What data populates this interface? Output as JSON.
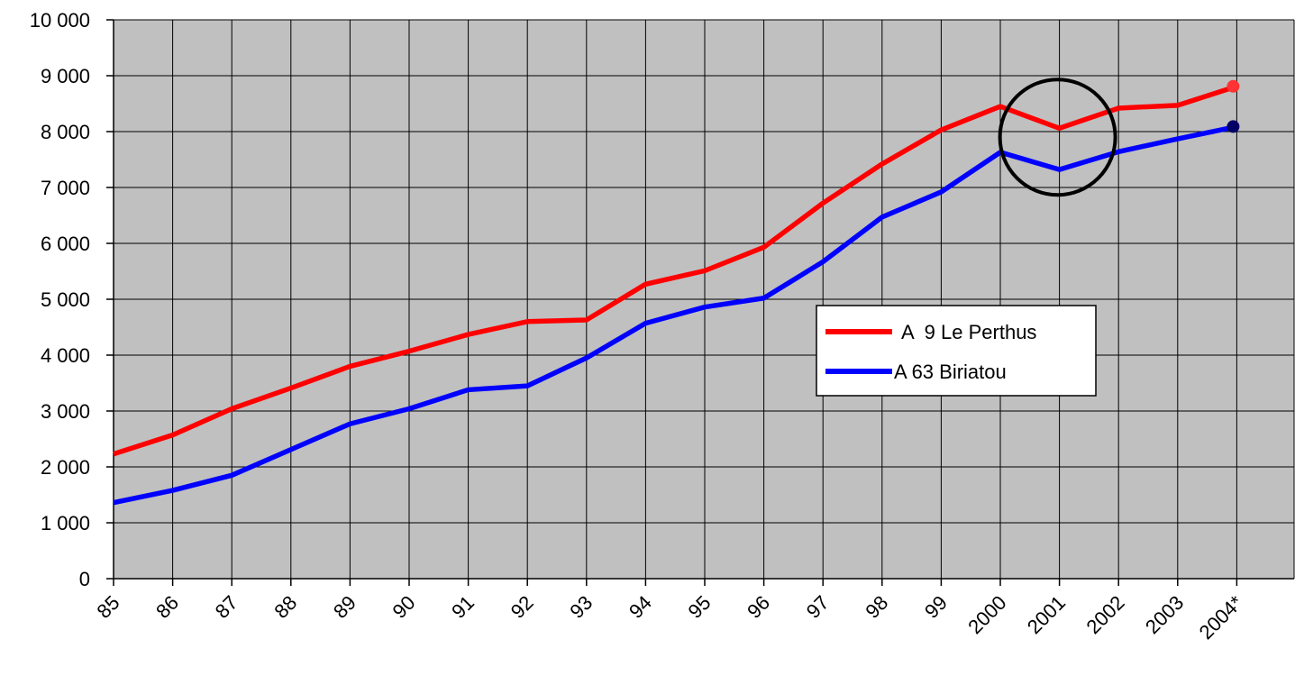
{
  "chart_data": {
    "type": "line",
    "categories": [
      "85",
      "86",
      "87",
      "88",
      "89",
      "90",
      "91",
      "92",
      "93",
      "94",
      "95",
      "96",
      "97",
      "98",
      "99",
      "2000",
      "2001",
      "2002",
      "2003",
      "2004*"
    ],
    "series": [
      {
        "name": "A  9 Le Perthus",
        "color": "#ff0000",
        "values": [
          2230,
          2570,
          3040,
          3410,
          3800,
          4070,
          4370,
          4600,
          4630,
          5270,
          5510,
          5930,
          6720,
          7420,
          8030,
          8450,
          8060,
          8420,
          8470,
          8810
        ]
      },
      {
        "name": "A 63 Biriatou",
        "color": "#0000ff",
        "values": [
          1360,
          1580,
          1850,
          2310,
          2770,
          3040,
          3380,
          3450,
          3950,
          4570,
          4860,
          5020,
          5670,
          6470,
          6920,
          7630,
          7320,
          7640,
          7870,
          8090
        ]
      }
    ],
    "yticks": [
      "0",
      "1 000",
      "2 000",
      "3 000",
      "4 000",
      "5 000",
      "6 000",
      "7 000",
      "8 000",
      "9 000",
      "10 000"
    ],
    "ylim": [
      0,
      10000
    ],
    "grid": true,
    "plot_background": "#c0c0c0",
    "legend_placement": "center-right",
    "annotation": {
      "type": "circle",
      "category": "2001",
      "value": 7900
    }
  }
}
